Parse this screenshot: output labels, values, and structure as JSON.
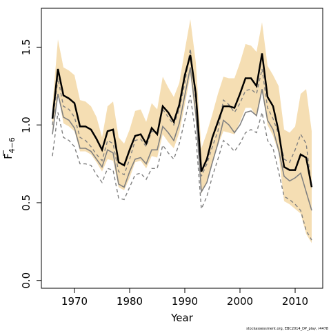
{
  "chart_data": {
    "type": "line",
    "xlabel": "Year",
    "ylabel": {
      "main": "F",
      "subscript": "4−6"
    },
    "xlim": [
      1964,
      2015
    ],
    "ylim": [
      -0.05,
      1.75
    ],
    "xticks": [
      1970,
      1980,
      1990,
      2000,
      2010
    ],
    "xtick_labels": [
      "1970",
      "1980",
      "1990",
      "2000",
      "2010"
    ],
    "yticks": [
      0.0,
      0.5,
      1.0,
      1.5
    ],
    "ytick_labels": [
      "0.0",
      "0.5",
      "1.0",
      "1.5"
    ],
    "grid": false,
    "credit": "stockassessment.org, EBC2014_DP_play, r4478",
    "colors": {
      "band": "#f5deb3",
      "main": "#000000",
      "gray": "#808080",
      "dashed": "#808080"
    },
    "x": [
      1966,
      1967,
      1968,
      1969,
      1970,
      1971,
      1972,
      1973,
      1974,
      1975,
      1976,
      1977,
      1978,
      1979,
      1980,
      1981,
      1982,
      1983,
      1984,
      1985,
      1986,
      1987,
      1988,
      1989,
      1990,
      1991,
      1992,
      1993,
      1994,
      1995,
      1996,
      1997,
      1998,
      1999,
      2000,
      2001,
      2002,
      2003,
      2004,
      2005,
      2006,
      2007,
      2008,
      2009,
      2010,
      2011,
      2012,
      2013
    ],
    "series": [
      {
        "style": "band",
        "upper": [
          1.12,
          1.55,
          1.37,
          1.35,
          1.32,
          1.16,
          1.15,
          1.12,
          1.05,
          0.92,
          1.12,
          1.15,
          0.92,
          0.88,
          0.97,
          1.09,
          1.1,
          1.02,
          1.14,
          1.1,
          1.31,
          1.24,
          1.18,
          1.27,
          1.48,
          1.68,
          1.4,
          0.85,
          0.95,
          1.07,
          1.2,
          1.31,
          1.3,
          1.3,
          1.4,
          1.52,
          1.51,
          1.47,
          1.66,
          1.38,
          1.32,
          1.25,
          0.97,
          0.95,
          0.99,
          1.2,
          1.23,
          0.96
        ],
        "lower": [
          0.98,
          1.2,
          1.01,
          0.99,
          0.96,
          0.83,
          0.83,
          0.81,
          0.76,
          0.7,
          0.78,
          0.77,
          0.6,
          0.58,
          0.66,
          0.76,
          0.77,
          0.72,
          0.8,
          0.79,
          0.94,
          0.89,
          0.85,
          0.95,
          1.13,
          1.32,
          1.02,
          0.56,
          0.63,
          0.75,
          0.87,
          0.96,
          0.95,
          0.94,
          1.02,
          1.11,
          1.11,
          1.05,
          1.21,
          1.0,
          0.93,
          0.82,
          0.51,
          0.49,
          0.46,
          0.43,
          0.3,
          0.24
        ]
      },
      {
        "style": "dashed",
        "values": [
          0.8,
          1.08,
          0.92,
          0.9,
          0.86,
          0.75,
          0.75,
          0.74,
          0.68,
          0.63,
          0.72,
          0.71,
          0.53,
          0.52,
          0.6,
          0.68,
          0.69,
          0.65,
          0.72,
          0.72,
          0.87,
          0.82,
          0.78,
          0.88,
          1.03,
          1.19,
          0.93,
          0.46,
          0.54,
          0.67,
          0.78,
          0.9,
          0.87,
          0.83,
          0.88,
          0.95,
          0.97,
          0.95,
          1.08,
          0.9,
          0.85,
          0.7,
          0.54,
          0.52,
          0.49,
          0.45,
          0.32,
          0.26
        ]
      },
      {
        "style": "dashed",
        "values": [
          1.0,
          1.3,
          1.12,
          1.1,
          1.05,
          0.92,
          0.9,
          0.86,
          0.81,
          0.77,
          0.9,
          0.88,
          0.7,
          0.68,
          0.78,
          0.9,
          0.91,
          0.86,
          0.96,
          0.95,
          1.1,
          1.05,
          1.0,
          1.1,
          1.27,
          1.49,
          1.15,
          0.67,
          0.75,
          0.86,
          0.96,
          1.16,
          1.13,
          1.08,
          1.14,
          1.22,
          1.23,
          1.2,
          1.36,
          1.11,
          1.04,
          0.94,
          0.78,
          0.76,
          0.84,
          0.94,
          0.88,
          0.59
        ]
      },
      {
        "style": "gray",
        "values": [
          0.94,
          1.2,
          1.05,
          1.03,
          0.98,
          0.85,
          0.85,
          0.83,
          0.78,
          0.73,
          0.84,
          0.82,
          0.62,
          0.6,
          0.7,
          0.78,
          0.79,
          0.75,
          0.84,
          0.84,
          0.99,
          0.95,
          0.9,
          1.01,
          1.19,
          1.37,
          1.07,
          0.57,
          0.63,
          0.76,
          0.88,
          1.03,
          1.0,
          0.95,
          1.0,
          1.08,
          1.09,
          1.06,
          1.23,
          1.03,
          0.97,
          0.84,
          0.67,
          0.64,
          0.66,
          0.69,
          0.57,
          0.45
        ]
      },
      {
        "style": "main",
        "values": [
          1.04,
          1.36,
          1.19,
          1.17,
          1.14,
          0.99,
          0.99,
          0.97,
          0.91,
          0.84,
          0.96,
          0.97,
          0.76,
          0.74,
          0.84,
          0.93,
          0.94,
          0.88,
          0.98,
          0.94,
          1.12,
          1.08,
          1.02,
          1.13,
          1.32,
          1.45,
          1.2,
          0.7,
          0.78,
          0.92,
          1.02,
          1.12,
          1.12,
          1.11,
          1.2,
          1.3,
          1.3,
          1.25,
          1.46,
          1.18,
          1.12,
          0.96,
          0.73,
          0.71,
          0.71,
          0.81,
          0.79,
          0.6
        ]
      }
    ]
  }
}
